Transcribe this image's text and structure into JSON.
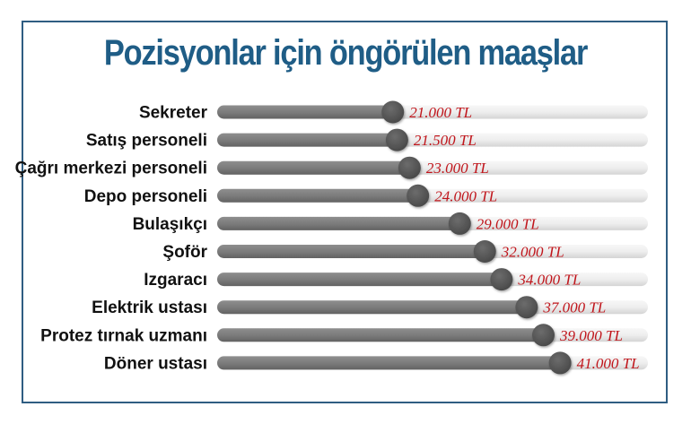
{
  "title": "Pozisyonlar için öngörülen maaşlar",
  "colors": {
    "frame": "#2f5d82",
    "title": "#1f5d86",
    "bar_fill": "#7a7a7a",
    "track": "#e6e6e6",
    "knob": "#555555",
    "value_text": "#c0151b",
    "label_text": "#111111"
  },
  "chart_data": {
    "type": "bar",
    "orientation": "horizontal",
    "title": "Pozisyonlar için öngörülen maaşlar",
    "unit": "TL",
    "categories": [
      "Sekreter",
      "Satış personeli",
      "Çağrı merkezi personeli",
      "Depo personeli",
      "Bulaşıkçı",
      "Şoför",
      "Izgaracı",
      "Elektrik ustası",
      "Protez tırnak uzmanı",
      "Döner ustası"
    ],
    "values": [
      21000,
      21500,
      23000,
      24000,
      29000,
      32000,
      34000,
      37000,
      39000,
      41000
    ],
    "value_labels": [
      "21.000 TL",
      "21.500 TL",
      "23.000 TL",
      "24.000 TL",
      "29.000 TL",
      "32.000 TL",
      "34.000 TL",
      "37.000 TL",
      "39.000 TL",
      "41.000 TL"
    ],
    "xlim": [
      0,
      51500
    ],
    "grid": false,
    "legend": "none"
  }
}
